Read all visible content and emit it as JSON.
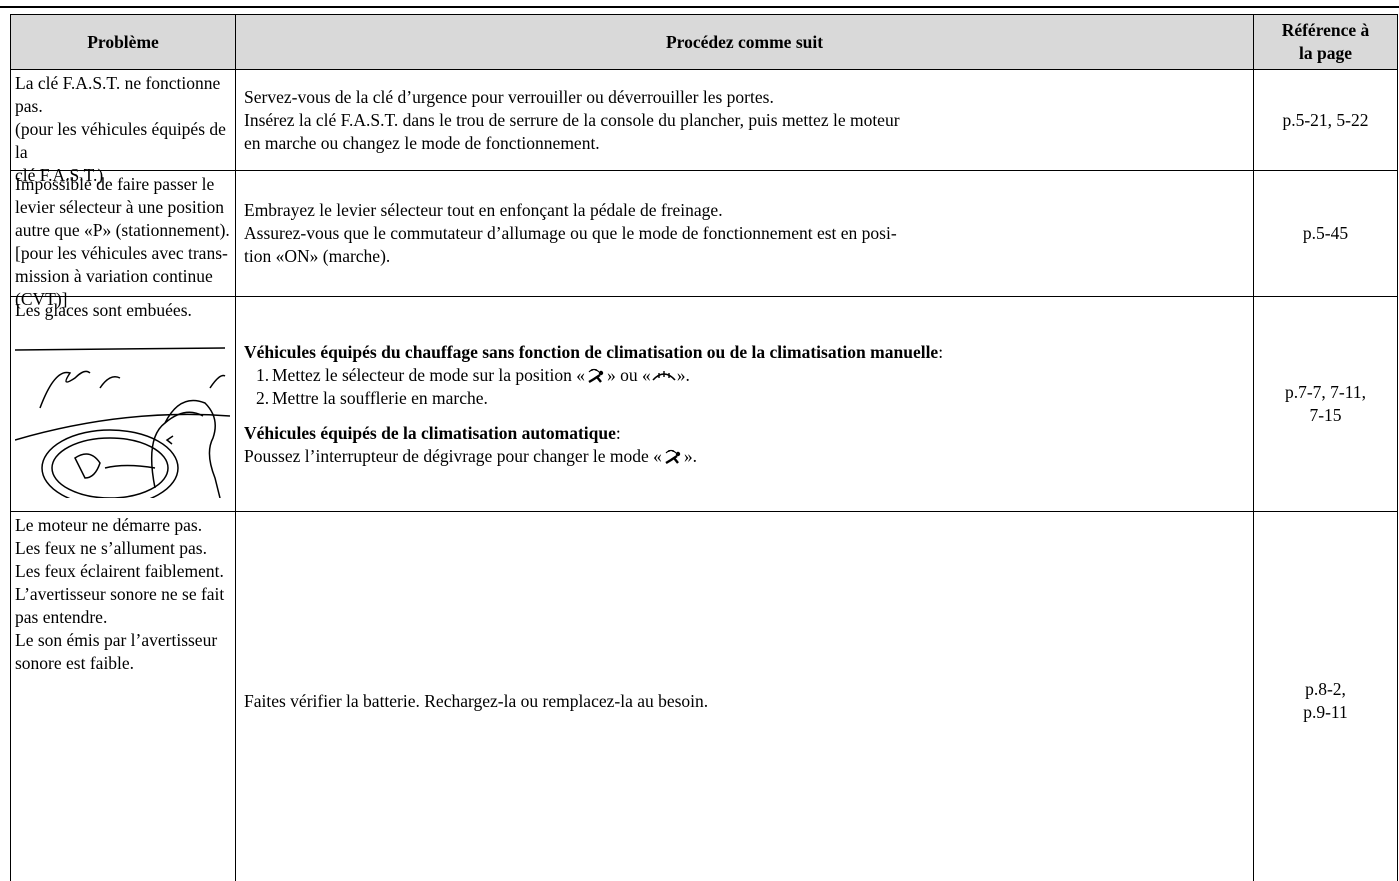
{
  "header": {
    "problem": "Problème",
    "procedure": "Procédez comme suit",
    "reference": [
      "Référence à",
      "la page"
    ]
  },
  "rows": [
    {
      "problem": [
        "La clé F.A.S.T. ne fonctionne",
        "pas.",
        "(pour les véhicules équipés de la",
        "clé F.A.S.T.)"
      ],
      "procedure": [
        "Servez-vous de la clé d’urgence pour verrouiller ou déverrouiller les portes.",
        "Insérez la clé F.A.S.T. dans le trou de serrure de la console du plancher, puis mettez le moteur",
        "en marche ou changez le mode de fonctionnement."
      ],
      "reference": [
        "p.5-21, 5-22"
      ]
    },
    {
      "problem": [
        "Impossible de faire passer le",
        "levier sélecteur à une position",
        "autre que «P» (stationnement).",
        "[pour les véhicules avec trans-",
        "mission à variation continue",
        "(CVT)]"
      ],
      "procedure": [
        "Embrayez le levier sélecteur tout en enfonçant la pédale de freinage.",
        "Assurez-vous que le commutateur d’allumage ou que le mode de fonctionnement est en posi-",
        "tion «ON» (marche)."
      ],
      "reference": [
        "p.5-45"
      ]
    },
    {
      "problem": [
        "Les glaces sont embuées."
      ],
      "procedure_sections": [
        {
          "heading": "Véhicules équipés du chauffage sans fonction de climatisation ou de la climatisation manuelle",
          "heading_suffix": ":",
          "items": [
            {
              "number": "1.",
              "text_parts": [
                "Mettez le sélecteur de mode sur la position «",
                "» ou «",
                "»."
              ]
            },
            {
              "number": "2.",
              "text_parts": [
                "Mettre la soufflerie en marche."
              ]
            }
          ]
        },
        {
          "heading": "Véhicules équipés de la climatisation automatique",
          "heading_suffix": ":",
          "text_parts": [
            "Poussez l’interrupteur de dégivrage pour changer le mode «",
            "»."
          ]
        }
      ],
      "reference": [
        "p.7-7, 7-11,",
        "7-15"
      ]
    },
    {
      "problem": [
        "Le moteur ne démarre pas.",
        "Les feux ne s’allument pas.",
        "Les feux éclairent faiblement.",
        "L’avertisseur sonore ne se fait",
        "pas entendre.",
        "Le son émis par l’avertisseur",
        "sonore est faible."
      ],
      "procedure": [
        "Faites vérifier la batterie. Rechargez-la ou remplacez-la au besoin."
      ],
      "reference": [
        "p.8-2,",
        "p.9-11"
      ]
    }
  ]
}
